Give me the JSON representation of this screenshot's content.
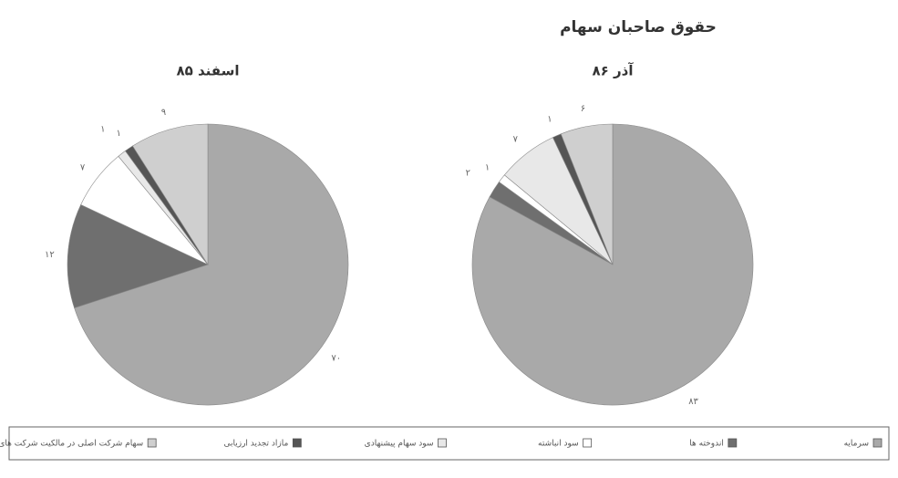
{
  "title": "حقوق صاحبان سهام",
  "legend": {
    "categories": [
      "سرمایه",
      "اندوخته ها",
      "سود انباشته",
      "سود سهام پیشنهادی",
      "مازاد تجدید ارزیابی",
      "سهام شرکت اصلی در مالکیت شرکت های فرعی"
    ],
    "colors": [
      "#a9a9a9",
      "#6f6f6f",
      "#ffffff",
      "#e8e8e8",
      "#555555",
      "#cfcfcf"
    ]
  },
  "chart_data": [
    {
      "type": "pie",
      "subtitle": "اسفند ۸۵",
      "values": [
        70,
        12,
        7,
        1,
        1,
        9
      ],
      "value_labels": [
        "۷۰",
        "۱۲",
        "۷",
        "۱",
        "۱",
        "۹"
      ]
    },
    {
      "type": "pie",
      "subtitle": "آذر ۸۶",
      "values": [
        83,
        2,
        1,
        7,
        1,
        6
      ],
      "value_labels": [
        "۸۳",
        "۲",
        "۱",
        "۷",
        "۱",
        "۶"
      ]
    }
  ]
}
